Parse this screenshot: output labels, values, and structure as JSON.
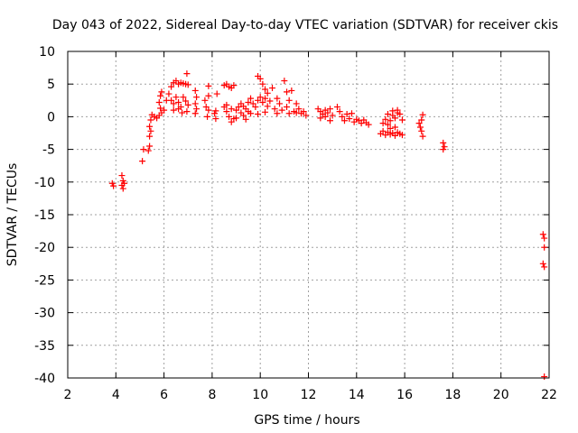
{
  "chart_data": {
    "type": "scatter",
    "title": "Day 043 of 2022, Sidereal Day-to-day VTEC variation (SDTVAR) for receiver ckis",
    "xlabel": "GPS time / hours",
    "ylabel": "SDTVAR / TECUs",
    "xlim": [
      2,
      22
    ],
    "ylim": [
      -40,
      10
    ],
    "xticks": [
      "2",
      "4",
      "6",
      "8",
      "10",
      "12",
      "14",
      "16",
      "18",
      "20",
      "22"
    ],
    "yticks": [
      "10",
      "5",
      "0",
      "-5",
      "-10",
      "-15",
      "-20",
      "-25",
      "-30",
      "-35",
      "-40"
    ],
    "grid": true,
    "marker": "plus",
    "marker_color": "#ff0000",
    "series": [
      {
        "name": "SDTVAR",
        "points": [
          [
            3.85,
            -10.2
          ],
          [
            3.9,
            -10.6
          ],
          [
            4.25,
            -9.0
          ],
          [
            4.3,
            -9.8
          ],
          [
            4.25,
            -10.5
          ],
          [
            4.3,
            -11.0
          ],
          [
            4.35,
            -10.2
          ],
          [
            5.1,
            -6.8
          ],
          [
            5.15,
            -5.0
          ],
          [
            5.35,
            -5.2
          ],
          [
            5.4,
            -4.5
          ],
          [
            5.4,
            -3.0
          ],
          [
            5.45,
            -2.2
          ],
          [
            5.4,
            -1.5
          ],
          [
            5.45,
            -0.5
          ],
          [
            5.5,
            0.3
          ],
          [
            5.6,
            0.0
          ],
          [
            5.7,
            -0.2
          ],
          [
            5.8,
            0.2
          ],
          [
            5.9,
            0.6
          ],
          [
            5.85,
            1.3
          ],
          [
            5.8,
            2.2
          ],
          [
            5.85,
            3.2
          ],
          [
            5.9,
            3.8
          ],
          [
            6.0,
            1.0
          ],
          [
            6.1,
            2.5
          ],
          [
            6.2,
            3.5
          ],
          [
            6.3,
            4.6
          ],
          [
            6.4,
            5.2
          ],
          [
            6.5,
            5.5
          ],
          [
            6.6,
            5.0
          ],
          [
            6.7,
            5.2
          ],
          [
            6.8,
            5.1
          ],
          [
            6.9,
            5.0
          ],
          [
            7.0,
            4.9
          ],
          [
            6.95,
            6.6
          ],
          [
            6.3,
            2.5
          ],
          [
            6.4,
            2.0
          ],
          [
            6.5,
            3.0
          ],
          [
            6.6,
            2.2
          ],
          [
            6.7,
            1.5
          ],
          [
            6.8,
            3.0
          ],
          [
            6.9,
            2.4
          ],
          [
            7.0,
            1.8
          ],
          [
            6.4,
            1.0
          ],
          [
            6.6,
            1.2
          ],
          [
            6.75,
            0.6
          ],
          [
            6.95,
            0.8
          ],
          [
            7.3,
            4.0
          ],
          [
            7.35,
            3.0
          ],
          [
            7.3,
            2.0
          ],
          [
            7.35,
            1.2
          ],
          [
            7.3,
            0.5
          ],
          [
            7.7,
            2.5
          ],
          [
            7.75,
            1.5
          ],
          [
            7.8,
            0.0
          ],
          [
            7.85,
            1.0
          ],
          [
            7.85,
            4.7
          ],
          [
            7.85,
            3.2
          ],
          [
            8.1,
            0.5
          ],
          [
            8.15,
            -0.3
          ],
          [
            8.2,
            3.5
          ],
          [
            8.15,
            0.9
          ],
          [
            8.5,
            4.8
          ],
          [
            8.6,
            5.0
          ],
          [
            8.7,
            4.6
          ],
          [
            8.8,
            4.4
          ],
          [
            8.9,
            4.8
          ],
          [
            8.5,
            1.5
          ],
          [
            8.6,
            0.8
          ],
          [
            8.7,
            0.0
          ],
          [
            8.8,
            -0.8
          ],
          [
            8.9,
            -0.3
          ],
          [
            8.6,
            1.8
          ],
          [
            8.8,
            1.2
          ],
          [
            9.0,
            1.0
          ],
          [
            9.1,
            1.5
          ],
          [
            9.2,
            2.0
          ],
          [
            9.3,
            1.6
          ],
          [
            9.4,
            1.2
          ],
          [
            9.5,
            2.2
          ],
          [
            9.6,
            2.8
          ],
          [
            9.7,
            2.0
          ],
          [
            9.8,
            1.5
          ],
          [
            9.9,
            2.5
          ],
          [
            10.0,
            3.0
          ],
          [
            10.1,
            2.2
          ],
          [
            10.2,
            2.8
          ],
          [
            10.3,
            1.6
          ],
          [
            10.4,
            2.4
          ],
          [
            9.9,
            6.2
          ],
          [
            10.0,
            5.8
          ],
          [
            10.1,
            5.0
          ],
          [
            10.2,
            4.2
          ],
          [
            10.3,
            3.6
          ],
          [
            9.3,
            0.2
          ],
          [
            9.6,
            0.5
          ],
          [
            9.9,
            0.4
          ],
          [
            10.2,
            0.7
          ],
          [
            9.5,
            0.8
          ],
          [
            9.0,
            -0.2
          ],
          [
            9.2,
            0.6
          ],
          [
            9.4,
            -0.4
          ],
          [
            10.5,
            4.4
          ],
          [
            10.7,
            2.8
          ],
          [
            10.8,
            2.0
          ],
          [
            10.6,
            1.2
          ],
          [
            10.9,
            1.0
          ],
          [
            10.7,
            0.5
          ],
          [
            11.0,
            5.5
          ],
          [
            11.1,
            3.8
          ],
          [
            11.2,
            2.5
          ],
          [
            11.3,
            4.0
          ],
          [
            11.5,
            2.0
          ],
          [
            11.1,
            1.5
          ],
          [
            11.2,
            0.5
          ],
          [
            11.4,
            0.8
          ],
          [
            11.6,
            1.2
          ],
          [
            11.7,
            0.5
          ],
          [
            11.8,
            0.8
          ],
          [
            11.9,
            0.2
          ],
          [
            11.5,
            0.6
          ],
          [
            12.4,
            1.2
          ],
          [
            12.5,
            0.8
          ],
          [
            12.6,
            0.4
          ],
          [
            12.7,
            1.0
          ],
          [
            12.8,
            0.6
          ],
          [
            12.9,
            1.2
          ],
          [
            13.0,
            0.2
          ],
          [
            12.5,
            -0.2
          ],
          [
            12.7,
            0.0
          ],
          [
            12.9,
            -0.6
          ],
          [
            13.2,
            1.5
          ],
          [
            13.3,
            0.8
          ],
          [
            13.4,
            0.0
          ],
          [
            13.5,
            -0.6
          ],
          [
            13.6,
            0.4
          ],
          [
            13.7,
            -0.3
          ],
          [
            13.8,
            0.5
          ],
          [
            13.9,
            -0.8
          ],
          [
            14.0,
            -0.4
          ],
          [
            14.1,
            -0.6
          ],
          [
            14.2,
            -1.0
          ],
          [
            14.3,
            -0.5
          ],
          [
            14.4,
            -0.9
          ],
          [
            14.5,
            -1.2
          ],
          [
            15.0,
            -2.6
          ],
          [
            15.1,
            -2.2
          ],
          [
            15.2,
            -2.8
          ],
          [
            15.3,
            -2.4
          ],
          [
            15.4,
            -2.7
          ],
          [
            15.5,
            -2.5
          ],
          [
            15.6,
            -2.9
          ],
          [
            15.7,
            -2.4
          ],
          [
            15.8,
            -2.6
          ],
          [
            15.9,
            -2.8
          ],
          [
            15.1,
            -1.0
          ],
          [
            15.2,
            -0.4
          ],
          [
            15.3,
            -1.2
          ],
          [
            15.4,
            -0.6
          ],
          [
            15.5,
            0.2
          ],
          [
            15.6,
            -0.2
          ],
          [
            15.7,
            0.6
          ],
          [
            15.8,
            0.4
          ],
          [
            15.9,
            -0.5
          ],
          [
            15.3,
            0.4
          ],
          [
            15.5,
            0.9
          ],
          [
            15.7,
            1.0
          ],
          [
            15.4,
            -1.8
          ],
          [
            15.6,
            -1.6
          ],
          [
            16.6,
            -1.0
          ],
          [
            16.65,
            -1.6
          ],
          [
            16.7,
            -2.2
          ],
          [
            16.75,
            -3.0
          ],
          [
            16.7,
            -0.5
          ],
          [
            16.75,
            0.3
          ],
          [
            17.6,
            -4.0
          ],
          [
            17.65,
            -4.6
          ],
          [
            17.6,
            -5.0
          ],
          [
            21.75,
            -18.0
          ],
          [
            21.8,
            -18.6
          ],
          [
            21.8,
            -20.0
          ],
          [
            21.75,
            -22.5
          ],
          [
            21.8,
            -23.0
          ],
          [
            21.8,
            -39.8
          ]
        ]
      }
    ]
  }
}
